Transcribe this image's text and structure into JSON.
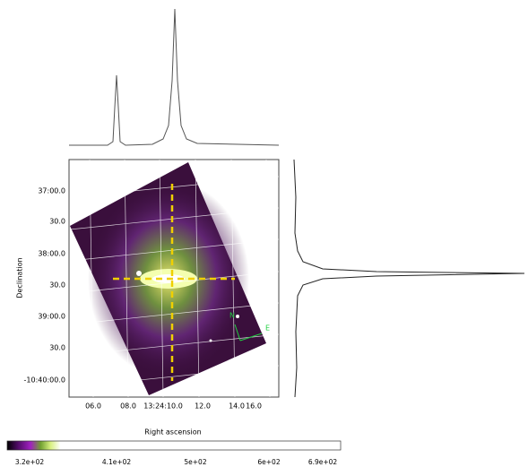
{
  "viewer": {
    "y_axis_title": "Declination",
    "x_axis_title": "Right ascension",
    "y_tick_labels": [
      "37:00.0",
      "30.0",
      "38:00.0",
      "30.0",
      "39:00.0",
      "30.0",
      "-10:40:00.0"
    ],
    "x_tick_labels": [
      "06.0",
      "08.0",
      "13:24:10.0",
      "12.0",
      "14.0",
      "16.0"
    ],
    "compass": {
      "north": "N",
      "east": "E"
    },
    "colorbar_labels": [
      "3.2e+02",
      "4.1e+02",
      "5e+02",
      "6e+02",
      "6.9e+02"
    ]
  }
}
